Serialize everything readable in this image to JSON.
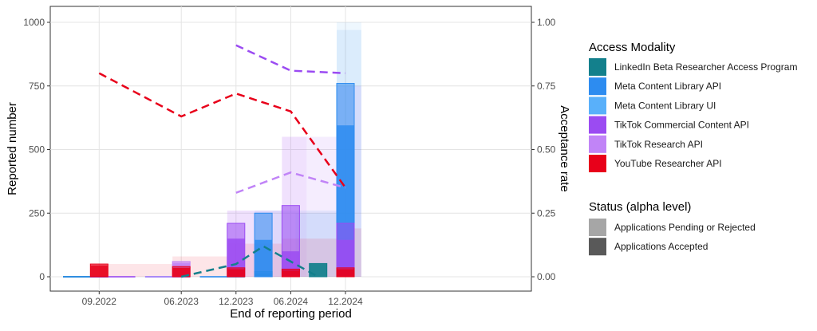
{
  "chart_data": {
    "type": "bar",
    "xlabel": "End of reporting period",
    "ylabel_left": "Reported number",
    "ylabel_right": "Acceptance rate",
    "periods": [
      "06.2022",
      "09.2022",
      "12.2022",
      "03.2023",
      "06.2023",
      "09.2023",
      "12.2023",
      "03.2024",
      "06.2024",
      "09.2024",
      "12.2024",
      "03.2025"
    ],
    "x_tick_labels": [
      "09.2022",
      "06.2023",
      "12.2023",
      "06.2024",
      "12.2024"
    ],
    "ylim_left": [
      0,
      1000
    ],
    "yticks_left": [
      0,
      250,
      500,
      750,
      1000
    ],
    "ylim_right": [
      0,
      1
    ],
    "yticks_right": [
      "0.00",
      "0.25",
      "0.50",
      "0.75",
      "1.00"
    ],
    "grid": true,
    "legend_position": "right",
    "legend_modality_title": "Access Modality",
    "legend_status_title": "Status (alpha level)",
    "status_entries": [
      "Applications Pending or Rejected",
      "Applications Accepted"
    ],
    "series": [
      {
        "name": "LinkedIn Beta Researcher Access Program",
        "color": "#13808C",
        "bars": [
          [
            "09.2024",
            52,
            52
          ],
          [
            "03.2024",
            20,
            14
          ]
        ],
        "rate": [
          [
            "06.2023",
            0
          ],
          [
            "12.2023",
            0.05
          ],
          [
            "03.2024",
            0.12
          ],
          [
            "09.2024",
            0.0
          ]
        ],
        "ribbon": []
      },
      {
        "name": "Meta Content Library API",
        "color": "#2D8CF0",
        "bars": [
          [
            "03.2024",
            250,
            145
          ],
          [
            "12.2024",
            760,
            595
          ]
        ],
        "rate": [],
        "ribbon": [
          [
            "03.2024",
            0.26
          ],
          [
            "12.2024",
            0.97
          ]
        ]
      },
      {
        "name": "Meta Content Library UI",
        "color": "#59B0FA",
        "bars": [],
        "rate": [],
        "ribbon": [
          [
            "12.2024",
            1.0
          ]
        ]
      },
      {
        "name": "TikTok Commercial Content API",
        "color": "#9B4BF2",
        "bars": [
          [
            "12.2023",
            210,
            150
          ],
          [
            "06.2024",
            280,
            100
          ],
          [
            "12.2024",
            210,
            145
          ]
        ],
        "rate": [
          [
            "12.2023",
            0.91
          ],
          [
            "06.2024",
            0.81
          ],
          [
            "12.2024",
            0.8
          ]
        ],
        "ribbon": [
          [
            "12.2023",
            0.26
          ],
          [
            "06.2024",
            0.55
          ],
          [
            "12.2024",
            0.75
          ]
        ]
      },
      {
        "name": "TikTok Research API",
        "color": "#C184F7",
        "bars": [
          [
            "06.2023",
            60,
            55
          ]
        ],
        "rate": [
          [
            "12.2023",
            0.33
          ],
          [
            "06.2024",
            0.41
          ],
          [
            "12.2024",
            0.35
          ]
        ],
        "ribbon": [
          [
            "12.2023",
            0.26
          ],
          [
            "06.2024",
            0.55
          ]
        ]
      },
      {
        "name": "YouTube Researcher API",
        "color": "#E8001A",
        "bars": [
          [
            "09.2022",
            50,
            45
          ],
          [
            "06.2023",
            40,
            35
          ],
          [
            "12.2023",
            35,
            30
          ],
          [
            "06.2024",
            30,
            25
          ],
          [
            "12.2024",
            35,
            30
          ]
        ],
        "rate": [
          [
            "09.2022",
            0.8
          ],
          [
            "06.2023",
            0.63
          ],
          [
            "12.2023",
            0.72
          ],
          [
            "06.2024",
            0.65
          ],
          [
            "12.2024",
            0.35
          ]
        ],
        "ribbon": [
          [
            "09.2022",
            0.05
          ],
          [
            "06.2023",
            0.08
          ],
          [
            "12.2023",
            0.13
          ],
          [
            "06.2024",
            0.15
          ],
          [
            "12.2024",
            0.19
          ]
        ]
      }
    ],
    "zero_segments": [
      {
        "name": "LinkedIn Beta Researcher Access Program",
        "from": "06.2022",
        "to": "09.2022"
      },
      {
        "name": "Meta Content Library API",
        "from": "06.2022",
        "to": "09.2022"
      },
      {
        "name": "TikTok Commercial Content API",
        "from": "09.2022",
        "to": "12.2022"
      },
      {
        "name": "Meta Content Library API",
        "from": "03.2023",
        "to": "06.2023"
      },
      {
        "name": "TikTok Research API",
        "from": "03.2023",
        "to": "06.2023"
      },
      {
        "name": "Meta Content Library API",
        "from": "09.2023",
        "to": "12.2023"
      }
    ]
  }
}
